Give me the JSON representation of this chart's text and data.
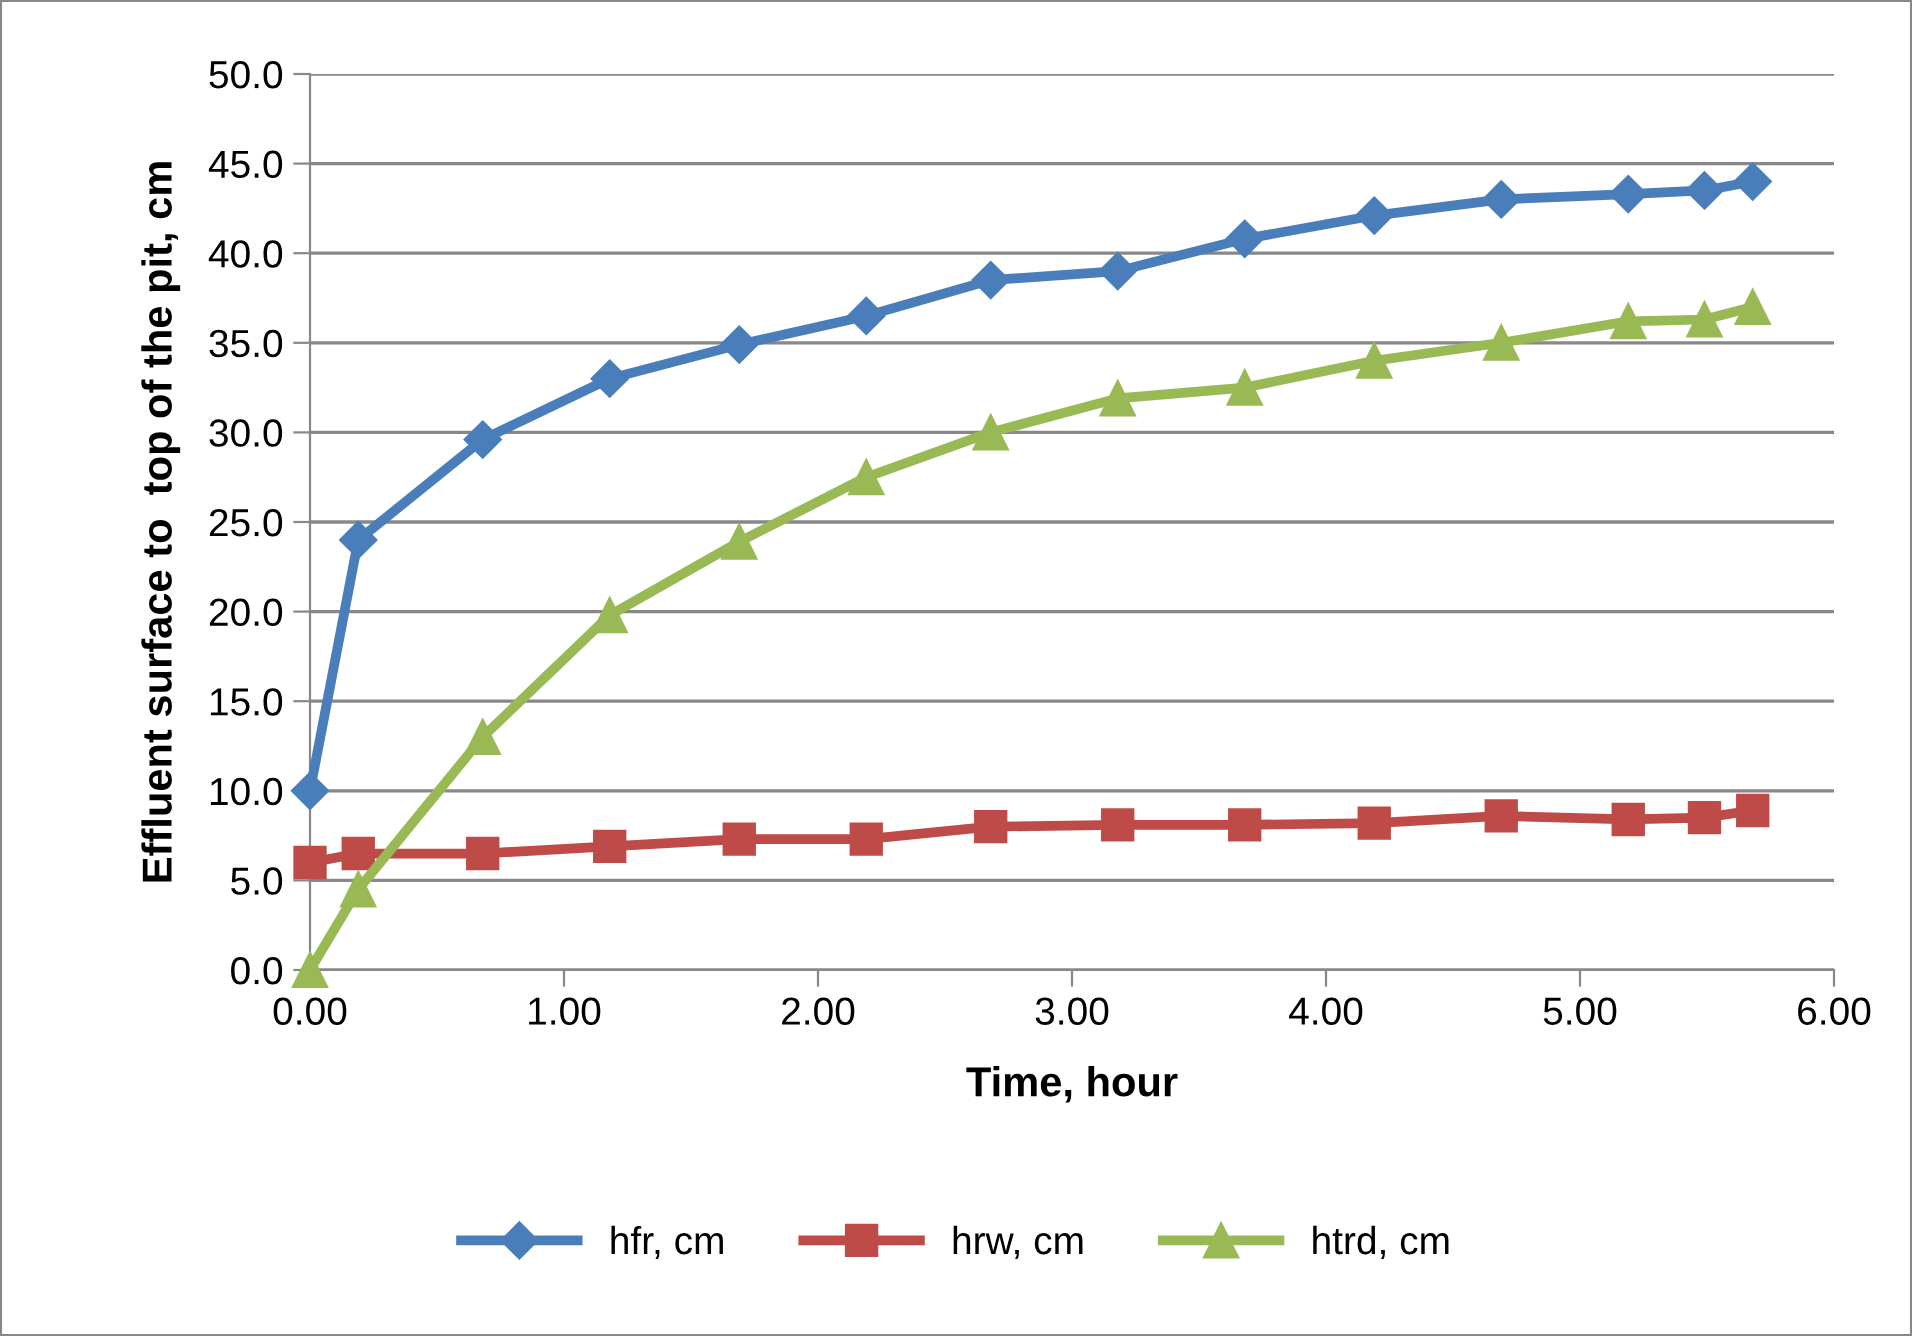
{
  "chart_data": {
    "type": "line",
    "xlabel": "Time, hour",
    "ylabel": "Effluent surface to  top of the pit, cm",
    "x": [
      0,
      0.19,
      0.68,
      1.18,
      1.69,
      2.19,
      2.68,
      3.18,
      3.68,
      4.19,
      4.69,
      5.19,
      5.49,
      5.68
    ],
    "series": [
      {
        "name": "hfr, cm",
        "color": "#4a7ebb",
        "marker": "diamond",
        "values": [
          10.0,
          24.0,
          29.6,
          33.0,
          34.9,
          36.5,
          38.5,
          39.0,
          40.8,
          42.1,
          43.0,
          43.3,
          43.5,
          44.0
        ]
      },
      {
        "name": "hrw, cm",
        "color": "#be4b48",
        "marker": "square",
        "values": [
          6.0,
          6.5,
          6.5,
          6.9,
          7.3,
          7.3,
          8.0,
          8.1,
          8.1,
          8.2,
          8.6,
          8.4,
          8.5,
          8.9
        ]
      },
      {
        "name": "htrd, cm",
        "color": "#98b954",
        "marker": "triangle",
        "values": [
          0.0,
          4.5,
          13.0,
          19.8,
          23.9,
          27.5,
          30.0,
          31.9,
          32.5,
          34.0,
          35.0,
          36.2,
          36.3,
          37.0
        ]
      }
    ],
    "xlim": [
      0,
      6
    ],
    "xticks": [
      {
        "value": 0,
        "label": "0.00"
      },
      {
        "value": 1,
        "label": "1.00"
      },
      {
        "value": 2,
        "label": "2.00"
      },
      {
        "value": 3,
        "label": "3.00"
      },
      {
        "value": 4,
        "label": "4.00"
      },
      {
        "value": 5,
        "label": "5.00"
      },
      {
        "value": 6,
        "label": "6.00"
      }
    ],
    "ylim": [
      0,
      50
    ],
    "yticks": [
      {
        "value": 0,
        "label": "0.0"
      },
      {
        "value": 5,
        "label": "5.0"
      },
      {
        "value": 10,
        "label": "10.0"
      },
      {
        "value": 15,
        "label": "15.0"
      },
      {
        "value": 20,
        "label": "20.0"
      },
      {
        "value": 25,
        "label": "25.0"
      },
      {
        "value": 30,
        "label": "30.0"
      },
      {
        "value": 35,
        "label": "35.0"
      },
      {
        "value": 40,
        "label": "40.0"
      },
      {
        "value": 45,
        "label": "45.0"
      },
      {
        "value": 50,
        "label": "50.0"
      }
    ],
    "grid": "y",
    "legend": "bottom",
    "line_style": "solid"
  }
}
